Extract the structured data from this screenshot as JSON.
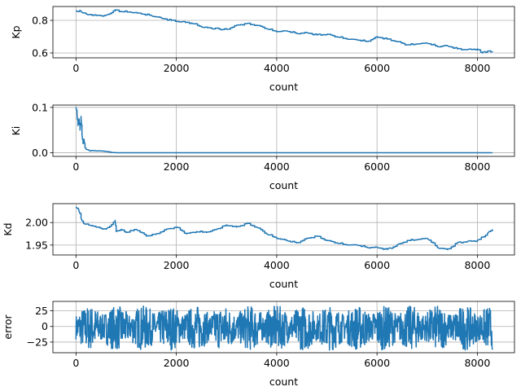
{
  "chart_data": [
    {
      "type": "line",
      "title": "",
      "xlabel": "count",
      "ylabel": "Kp",
      "xlim": [
        -460,
        8740
      ],
      "ylim": [
        0.57,
        0.885
      ],
      "xticks": [
        0,
        2000,
        4000,
        6000,
        8000
      ],
      "yticks": [
        0.6,
        0.8
      ],
      "ytick_labels": [
        "0.6",
        "0.8"
      ],
      "grid": true,
      "series_color": "#1f77b4",
      "x": [
        0,
        100,
        200,
        400,
        600,
        780,
        900,
        1100,
        1300,
        1500,
        1700,
        1900,
        2100,
        2300,
        2500,
        2700,
        3000,
        3200,
        3400,
        3600,
        3800,
        4000,
        4200,
        4400,
        4600,
        4800,
        5000,
        5200,
        5400,
        5600,
        5800,
        6000,
        6200,
        6400,
        6600,
        6800,
        7000,
        7200,
        7400,
        7600,
        7800,
        8000,
        8100,
        8200,
        8300
      ],
      "y": [
        0.86,
        0.855,
        0.84,
        0.83,
        0.83,
        0.865,
        0.855,
        0.85,
        0.84,
        0.83,
        0.815,
        0.8,
        0.79,
        0.785,
        0.76,
        0.75,
        0.745,
        0.77,
        0.78,
        0.77,
        0.75,
        0.73,
        0.735,
        0.72,
        0.725,
        0.71,
        0.715,
        0.7,
        0.685,
        0.68,
        0.67,
        0.7,
        0.685,
        0.67,
        0.65,
        0.655,
        0.66,
        0.64,
        0.645,
        0.625,
        0.62,
        0.625,
        0.6,
        0.61,
        0.605
      ]
    },
    {
      "type": "line",
      "title": "",
      "xlabel": "count",
      "ylabel": "Ki",
      "xlim": [
        -460,
        8740
      ],
      "ylim": [
        -0.008,
        0.105
      ],
      "xticks": [
        0,
        2000,
        4000,
        6000,
        8000
      ],
      "yticks": [
        0.0,
        0.1
      ],
      "ytick_labels": [
        "0.0",
        "0.1"
      ],
      "grid": true,
      "series_color": "#1f77b4",
      "x": [
        0,
        20,
        40,
        60,
        80,
        100,
        120,
        140,
        160,
        180,
        200,
        250,
        300,
        400,
        500,
        600,
        700,
        800,
        1000,
        2000,
        4000,
        6000,
        8300
      ],
      "y": [
        0.1,
        0.085,
        0.06,
        0.075,
        0.05,
        0.08,
        0.04,
        0.02,
        0.03,
        0.012,
        0.008,
        0.006,
        0.005,
        0.004,
        0.004,
        0.003,
        0.001,
        0.0,
        0.0,
        0.0,
        0.0,
        0.0,
        0.0
      ]
    },
    {
      "type": "line",
      "title": "",
      "xlabel": "count",
      "ylabel": "Kd",
      "xlim": [
        -460,
        8740
      ],
      "ylim": [
        1.928,
        2.042
      ],
      "xticks": [
        0,
        2000,
        4000,
        6000,
        8000
      ],
      "yticks": [
        1.95,
        2.0
      ],
      "ytick_labels": [
        "1.95",
        "2.00"
      ],
      "grid": true,
      "series_color": "#1f77b4",
      "x": [
        0,
        50,
        100,
        150,
        250,
        400,
        600,
        780,
        800,
        900,
        1000,
        1200,
        1400,
        1600,
        1800,
        2000,
        2200,
        2400,
        2600,
        2800,
        3000,
        3200,
        3400,
        3600,
        3800,
        4000,
        4200,
        4400,
        4600,
        4800,
        5000,
        5200,
        5400,
        5600,
        5800,
        6000,
        6200,
        6400,
        6600,
        6800,
        7000,
        7200,
        7400,
        7600,
        7800,
        8000,
        8200,
        8300
      ],
      "y": [
        2.035,
        2.03,
        2.01,
        1.998,
        1.995,
        1.99,
        1.985,
        2.005,
        1.98,
        1.985,
        1.978,
        1.985,
        1.97,
        1.975,
        1.985,
        1.99,
        1.975,
        1.98,
        1.978,
        1.985,
        1.995,
        1.99,
        1.998,
        1.99,
        1.975,
        1.965,
        1.96,
        1.955,
        1.965,
        1.97,
        1.96,
        1.955,
        1.95,
        1.95,
        1.945,
        1.945,
        1.94,
        1.95,
        1.96,
        1.962,
        1.965,
        1.945,
        1.94,
        1.955,
        1.958,
        1.96,
        1.975,
        1.985
      ]
    },
    {
      "type": "line",
      "title": "",
      "xlabel": "count",
      "ylabel": "error",
      "xlim": [
        -460,
        8740
      ],
      "ylim": [
        -42,
        40
      ],
      "xticks": [
        0,
        2000,
        4000,
        6000,
        8000
      ],
      "yticks": [
        -25,
        0,
        25
      ],
      "ytick_labels": [
        "−25",
        "0",
        "25"
      ],
      "grid": true,
      "series_color": "#1f77b4",
      "oscillation_amplitude": [
        -38,
        33
      ],
      "x": [
        0,
        8300
      ]
    }
  ]
}
